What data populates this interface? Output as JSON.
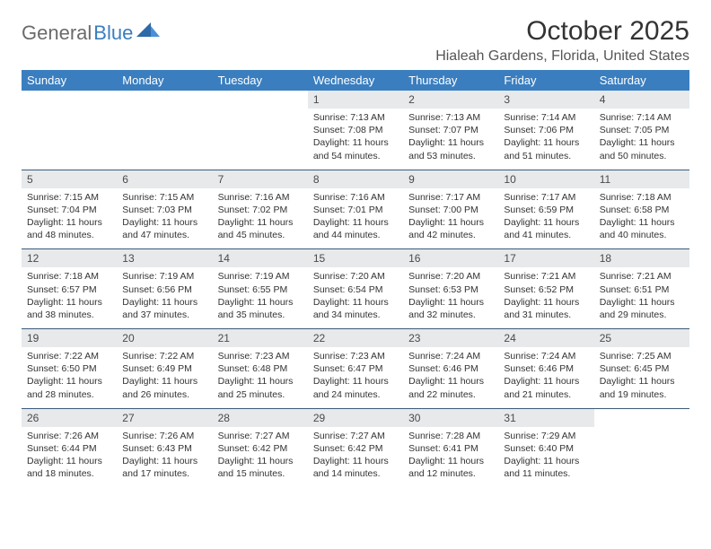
{
  "logo": {
    "text1": "General",
    "text2": "Blue"
  },
  "title": "October 2025",
  "location": "Hialeah Gardens, Florida, United States",
  "colors": {
    "header_bg": "#3a7ebf",
    "header_fg": "#ffffff",
    "daynum_bg": "#e7e9eb",
    "row_border": "#3a5a7a",
    "page_bg": "#ffffff",
    "text": "#333333",
    "logo_gray": "#6b6b6b",
    "logo_blue": "#3a7ebf"
  },
  "day_headers": [
    "Sunday",
    "Monday",
    "Tuesday",
    "Wednesday",
    "Thursday",
    "Friday",
    "Saturday"
  ],
  "weeks": [
    {
      "nums": [
        "",
        "",
        "",
        "1",
        "2",
        "3",
        "4"
      ],
      "cells": [
        "",
        "",
        "",
        "Sunrise: 7:13 AM\nSunset: 7:08 PM\nDaylight: 11 hours and 54 minutes.",
        "Sunrise: 7:13 AM\nSunset: 7:07 PM\nDaylight: 11 hours and 53 minutes.",
        "Sunrise: 7:14 AM\nSunset: 7:06 PM\nDaylight: 11 hours and 51 minutes.",
        "Sunrise: 7:14 AM\nSunset: 7:05 PM\nDaylight: 11 hours and 50 minutes."
      ]
    },
    {
      "nums": [
        "5",
        "6",
        "7",
        "8",
        "9",
        "10",
        "11"
      ],
      "cells": [
        "Sunrise: 7:15 AM\nSunset: 7:04 PM\nDaylight: 11 hours and 48 minutes.",
        "Sunrise: 7:15 AM\nSunset: 7:03 PM\nDaylight: 11 hours and 47 minutes.",
        "Sunrise: 7:16 AM\nSunset: 7:02 PM\nDaylight: 11 hours and 45 minutes.",
        "Sunrise: 7:16 AM\nSunset: 7:01 PM\nDaylight: 11 hours and 44 minutes.",
        "Sunrise: 7:17 AM\nSunset: 7:00 PM\nDaylight: 11 hours and 42 minutes.",
        "Sunrise: 7:17 AM\nSunset: 6:59 PM\nDaylight: 11 hours and 41 minutes.",
        "Sunrise: 7:18 AM\nSunset: 6:58 PM\nDaylight: 11 hours and 40 minutes."
      ]
    },
    {
      "nums": [
        "12",
        "13",
        "14",
        "15",
        "16",
        "17",
        "18"
      ],
      "cells": [
        "Sunrise: 7:18 AM\nSunset: 6:57 PM\nDaylight: 11 hours and 38 minutes.",
        "Sunrise: 7:19 AM\nSunset: 6:56 PM\nDaylight: 11 hours and 37 minutes.",
        "Sunrise: 7:19 AM\nSunset: 6:55 PM\nDaylight: 11 hours and 35 minutes.",
        "Sunrise: 7:20 AM\nSunset: 6:54 PM\nDaylight: 11 hours and 34 minutes.",
        "Sunrise: 7:20 AM\nSunset: 6:53 PM\nDaylight: 11 hours and 32 minutes.",
        "Sunrise: 7:21 AM\nSunset: 6:52 PM\nDaylight: 11 hours and 31 minutes.",
        "Sunrise: 7:21 AM\nSunset: 6:51 PM\nDaylight: 11 hours and 29 minutes."
      ]
    },
    {
      "nums": [
        "19",
        "20",
        "21",
        "22",
        "23",
        "24",
        "25"
      ],
      "cells": [
        "Sunrise: 7:22 AM\nSunset: 6:50 PM\nDaylight: 11 hours and 28 minutes.",
        "Sunrise: 7:22 AM\nSunset: 6:49 PM\nDaylight: 11 hours and 26 minutes.",
        "Sunrise: 7:23 AM\nSunset: 6:48 PM\nDaylight: 11 hours and 25 minutes.",
        "Sunrise: 7:23 AM\nSunset: 6:47 PM\nDaylight: 11 hours and 24 minutes.",
        "Sunrise: 7:24 AM\nSunset: 6:46 PM\nDaylight: 11 hours and 22 minutes.",
        "Sunrise: 7:24 AM\nSunset: 6:46 PM\nDaylight: 11 hours and 21 minutes.",
        "Sunrise: 7:25 AM\nSunset: 6:45 PM\nDaylight: 11 hours and 19 minutes."
      ]
    },
    {
      "nums": [
        "26",
        "27",
        "28",
        "29",
        "30",
        "31",
        ""
      ],
      "cells": [
        "Sunrise: 7:26 AM\nSunset: 6:44 PM\nDaylight: 11 hours and 18 minutes.",
        "Sunrise: 7:26 AM\nSunset: 6:43 PM\nDaylight: 11 hours and 17 minutes.",
        "Sunrise: 7:27 AM\nSunset: 6:42 PM\nDaylight: 11 hours and 15 minutes.",
        "Sunrise: 7:27 AM\nSunset: 6:42 PM\nDaylight: 11 hours and 14 minutes.",
        "Sunrise: 7:28 AM\nSunset: 6:41 PM\nDaylight: 11 hours and 12 minutes.",
        "Sunrise: 7:29 AM\nSunset: 6:40 PM\nDaylight: 11 hours and 11 minutes.",
        ""
      ]
    }
  ]
}
